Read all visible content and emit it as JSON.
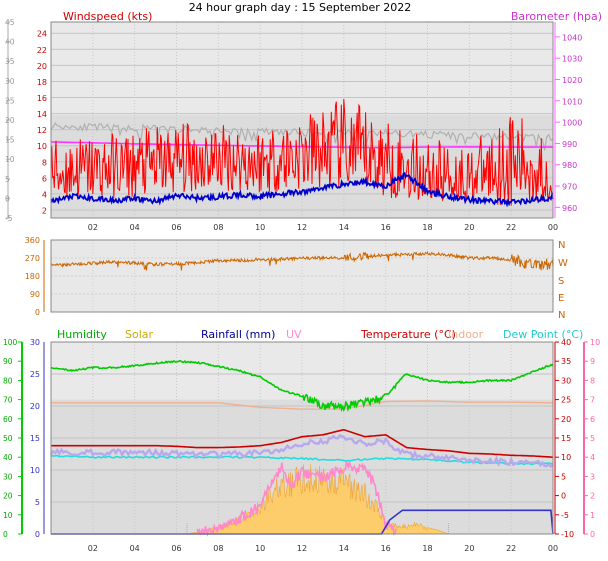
{
  "title": "24 hour graph day : 15 September 2022",
  "colors": {
    "windspeed": "#ff0000",
    "windavg": "#0000cc",
    "gust": "#b0b0b0",
    "baro": "#ff33ff",
    "winddir": "#cc6600",
    "humidity": "#00cc00",
    "solar": "#ffcc66",
    "rainfall": "#3333cc",
    "uv": "#ff88cc",
    "temperature": "#cc0000",
    "indoor": "#f0b090",
    "dewpoint": "#22dddd"
  },
  "chart_data": [
    {
      "type": "line",
      "name": "wind",
      "x_ticks": [
        "02",
        "04",
        "06",
        "08",
        "10",
        "12",
        "14",
        "16",
        "18",
        "20",
        "22",
        "00"
      ],
      "left_axis": {
        "label": "Windspeed (kts)",
        "ticks": [
          "-5",
          "0",
          "5",
          "10",
          "15",
          "20",
          "25",
          "30",
          "35",
          "40",
          "45"
        ],
        "range": [
          -5,
          45
        ]
      },
      "plot_axis": {
        "ticks": [
          "2",
          "4",
          "6",
          "8",
          "10",
          "12",
          "14",
          "16",
          "18",
          "20",
          "22",
          "24"
        ],
        "range": [
          1,
          25.4
        ]
      },
      "right_axis": {
        "label": "Barometer (hpa)",
        "ticks": [
          "960",
          "970",
          "980",
          "990",
          "1000",
          "1010",
          "1020",
          "1030",
          "1040"
        ],
        "range": [
          955,
          1047
        ]
      },
      "series": {
        "gust": {
          "x": [
            0,
            1,
            2,
            3,
            4,
            5,
            6,
            7,
            8,
            9,
            10,
            11,
            12,
            13,
            14,
            15,
            16,
            17,
            18,
            19,
            20,
            21,
            22,
            23,
            24
          ],
          "y": [
            12.5,
            12.4,
            12.3,
            12.2,
            12.2,
            12.1,
            12.0,
            12.0,
            11.9,
            11.8,
            11.8,
            11.7,
            11.6,
            11.6,
            11.8,
            11.7,
            11.6,
            11.5,
            11.4,
            11.3,
            11.2,
            11.1,
            11.1,
            11.0,
            11.0
          ]
        },
        "baro": {
          "x": [
            0,
            2,
            4,
            6,
            8,
            10,
            12,
            14,
            16,
            18,
            20,
            22,
            24
          ],
          "y": [
            990.7,
            990.3,
            989.8,
            989.5,
            989.1,
            988.8,
            988.5,
            988.2,
            988.0,
            988.3,
            988.4,
            988.3,
            988.3
          ]
        },
        "wind_avg": {
          "x": [
            0,
            1,
            2,
            3,
            4,
            5,
            6,
            7,
            8,
            9,
            10,
            11,
            12,
            13,
            14,
            15,
            16,
            17,
            18,
            19,
            20,
            21,
            22,
            23,
            24
          ],
          "y": [
            3.0,
            3.7,
            3.4,
            3.2,
            3.4,
            3.1,
            3.8,
            3.5,
            3.6,
            3.9,
            3.7,
            4.0,
            4.2,
            4.8,
            5.2,
            5.5,
            5.0,
            6.4,
            4.3,
            3.7,
            3.3,
            3.1,
            3.0,
            3.2,
            3.6
          ]
        },
        "wind_min": {
          "x": [
            0,
            2,
            4,
            6,
            8,
            10,
            12,
            14,
            16,
            18,
            20,
            22,
            24
          ],
          "y": [
            3.0,
            3.5,
            3.5,
            4.0,
            4.5,
            4.0,
            4.5,
            4.5,
            3.5,
            3.0,
            3.0,
            2.5,
            3.0
          ]
        },
        "wind_max": {
          "x": [
            0,
            2,
            4,
            6,
            8,
            10,
            12,
            14,
            16,
            18,
            20,
            22,
            24
          ],
          "y": [
            11.0,
            11.5,
            12.0,
            13.0,
            13.0,
            12.5,
            14.0,
            16.0,
            13.5,
            11.0,
            10.0,
            14.5,
            10.5
          ]
        }
      }
    },
    {
      "type": "line",
      "name": "wind direction",
      "left_axis": {
        "ticks": [
          "0",
          "90",
          "180",
          "270",
          "360"
        ],
        "range": [
          0,
          360
        ]
      },
      "right_axis": {
        "ticks": [
          "N",
          "W",
          "S",
          "E",
          "N"
        ]
      },
      "series": {
        "dir": {
          "x": [
            0,
            1,
            2,
            3,
            4,
            5,
            6,
            7,
            8,
            9,
            10,
            11,
            12,
            13,
            14,
            15,
            16,
            17,
            18,
            19,
            20,
            21,
            22,
            23,
            24
          ],
          "y": [
            232,
            238,
            244,
            250,
            246,
            238,
            240,
            248,
            256,
            258,
            262,
            265,
            268,
            270,
            270,
            278,
            284,
            288,
            292,
            286,
            270,
            270,
            262,
            232,
            242
          ]
        }
      }
    },
    {
      "type": "line",
      "name": "temperature and humidity",
      "legend": [
        "Humidity",
        "Solar",
        "Rainfall (mm)",
        "UV",
        "Temperature (°C)",
        "Indoor",
        "Dew Point (°C)"
      ],
      "left_axis": {
        "ticks": [
          "0",
          "10",
          "20",
          "30",
          "40",
          "50",
          "60",
          "70",
          "80",
          "90",
          "100"
        ],
        "range": [
          0,
          100
        ]
      },
      "inner_axis": {
        "ticks": [
          "0",
          "5",
          "10",
          "15",
          "20",
          "25",
          "30"
        ],
        "range": [
          0,
          30
        ]
      },
      "right_axis": {
        "ticks": [
          "-10",
          "-5",
          "0",
          "5",
          "10",
          "15",
          "20",
          "25",
          "30",
          "35",
          "40"
        ],
        "range": [
          -10,
          40
        ]
      },
      "far_right_axis": {
        "ticks": [
          "0",
          "1",
          "2",
          "3",
          "4",
          "5",
          "6",
          "7",
          "8",
          "9",
          "10"
        ],
        "range": [
          0,
          10
        ]
      },
      "series": {
        "humidity": {
          "x": [
            0,
            1,
            2,
            3,
            4,
            5,
            6,
            7,
            8,
            9,
            10,
            11,
            12,
            13,
            14,
            15,
            16,
            16.5,
            17,
            18,
            19,
            20,
            21,
            22,
            23,
            24
          ],
          "y": [
            26,
            25.5,
            26,
            26,
            26.3,
            26.7,
            27,
            26.8,
            26.2,
            25.5,
            24.5,
            22.5,
            21.5,
            20,
            20,
            20.5,
            21.5,
            23.5,
            25,
            24,
            23.7,
            23.7,
            24,
            24,
            25.3,
            26.5
          ]
        },
        "indoor": {
          "x": [
            0,
            2,
            4,
            6,
            8,
            10,
            12,
            14,
            16,
            18,
            20,
            22,
            24
          ],
          "y": [
            20.5,
            20.5,
            20.5,
            20.5,
            20.5,
            19.8,
            19.5,
            19.5,
            20.7,
            20.8,
            20.6,
            20.6,
            20.5
          ]
        },
        "temperature": {
          "x": [
            0,
            1,
            2,
            3,
            4,
            5,
            6,
            7,
            8,
            9,
            10,
            11,
            12,
            13,
            14,
            15,
            16,
            17,
            18,
            19,
            20,
            21,
            22,
            23,
            24
          ],
          "y": [
            13.8,
            13.8,
            13.8,
            13.8,
            13.8,
            13.8,
            13.7,
            13.5,
            13.5,
            13.6,
            13.8,
            14.3,
            15.2,
            15.5,
            16.3,
            15.2,
            15.5,
            13.5,
            13.2,
            13,
            12.6,
            12.5,
            12.3,
            12.2,
            12
          ]
        },
        "dewpoint": {
          "x": [
            0,
            2,
            4,
            6,
            8,
            10,
            12,
            14,
            16,
            18,
            20,
            22,
            24
          ],
          "y": [
            12.2,
            12,
            12,
            12,
            12,
            12,
            11.8,
            11.5,
            11.8,
            11.6,
            11.2,
            11,
            11
          ]
        },
        "rainfall": {
          "x": [
            0,
            15.8,
            16.2,
            16.8,
            23.9,
            24
          ],
          "y": [
            0,
            0,
            2.2,
            3.7,
            3.7,
            0
          ]
        },
        "solar": {
          "x": [
            6.5,
            7,
            8,
            9,
            10,
            10.5,
            11,
            12,
            13,
            14,
            14.5,
            15,
            15.8,
            16,
            17,
            17.5,
            18,
            18.5,
            19
          ],
          "y": [
            0,
            0.3,
            1.2,
            3,
            5.5,
            8,
            10,
            11,
            11,
            10.5,
            9,
            8,
            4,
            1.8,
            1.5,
            2,
            1,
            0.6,
            0
          ]
        },
        "uv": {
          "x": [
            7,
            8,
            9,
            10,
            10.5,
            11,
            11.5,
            12,
            13,
            14,
            15,
            15.5,
            16,
            16.5
          ],
          "y": [
            0,
            0.3,
            0.8,
            1.4,
            2.5,
            3.5,
            2.5,
            3.2,
            3,
            3.5,
            3.5,
            2.5,
            0.5,
            0
          ]
        }
      }
    }
  ]
}
